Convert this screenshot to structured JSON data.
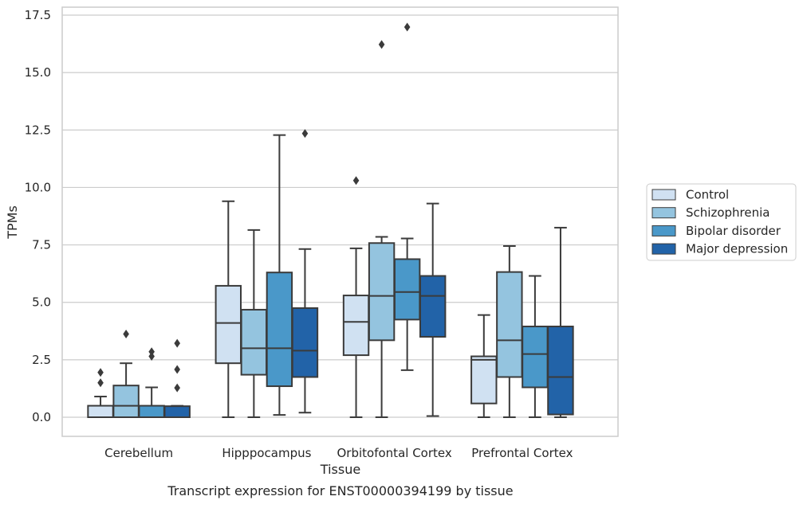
{
  "chart_data": {
    "type": "box",
    "title": "",
    "caption": "Transcript expression for ENST00000394199 by tissue",
    "xlabel": "Tissue",
    "ylabel": "TPMs",
    "ylim": [
      -0.8,
      17.8
    ],
    "yticks": [
      0.0,
      2.5,
      5.0,
      7.5,
      10.0,
      12.5,
      15.0,
      17.5
    ],
    "ytick_labels": [
      "0.0",
      "2.5",
      "5.0",
      "7.5",
      "10.0",
      "12.5",
      "15.0",
      "17.5"
    ],
    "grid": "horizontal",
    "legend_position": "right-outside",
    "categories": [
      "Cerebellum",
      "Hipppocampus",
      "Orbitofontal Cortex",
      "Prefrontal Cortex"
    ],
    "series": [
      {
        "name": "Control",
        "color": "#d0e1f2",
        "boxes": [
          {
            "whisker_low": 0.0,
            "q1": 0.0,
            "median": 0.0,
            "q3": 0.5,
            "whisker_high": 0.9,
            "outliers": [
              1.5,
              1.95
            ]
          },
          {
            "whisker_low": 0.0,
            "q1": 2.35,
            "median": 4.1,
            "q3": 5.72,
            "whisker_high": 9.4,
            "outliers": []
          },
          {
            "whisker_low": 0.0,
            "q1": 2.7,
            "median": 4.15,
            "q3": 5.3,
            "whisker_high": 7.35,
            "outliers": [
              10.3
            ]
          },
          {
            "whisker_low": 0.0,
            "q1": 0.6,
            "median": 2.5,
            "q3": 2.65,
            "whisker_high": 4.45,
            "outliers": []
          }
        ]
      },
      {
        "name": "Schizophrenia",
        "color": "#94c4df",
        "boxes": [
          {
            "whisker_low": 0.0,
            "q1": 0.0,
            "median": 0.5,
            "q3": 1.38,
            "whisker_high": 2.35,
            "outliers": [
              3.62
            ]
          },
          {
            "whisker_low": 0.0,
            "q1": 1.85,
            "median": 3.0,
            "q3": 4.68,
            "whisker_high": 8.15,
            "outliers": []
          },
          {
            "whisker_low": 0.0,
            "q1": 3.35,
            "median": 5.28,
            "q3": 7.58,
            "whisker_high": 7.85,
            "outliers": [
              16.22
            ]
          },
          {
            "whisker_low": 0.0,
            "q1": 1.75,
            "median": 3.35,
            "q3": 6.32,
            "whisker_high": 7.45,
            "outliers": []
          }
        ]
      },
      {
        "name": "Bipolar disorder",
        "color": "#4a98c9",
        "boxes": [
          {
            "whisker_low": 0.0,
            "q1": 0.0,
            "median": 0.0,
            "q3": 0.5,
            "whisker_high": 1.3,
            "outliers": [
              2.65,
              2.85
            ]
          },
          {
            "whisker_low": 0.1,
            "q1": 1.35,
            "median": 3.0,
            "q3": 6.3,
            "whisker_high": 12.28,
            "outliers": []
          },
          {
            "whisker_low": 2.05,
            "q1": 4.25,
            "median": 5.45,
            "q3": 6.88,
            "whisker_high": 7.78,
            "outliers": [
              16.98
            ]
          },
          {
            "whisker_low": 0.0,
            "q1": 1.3,
            "median": 2.75,
            "q3": 3.95,
            "whisker_high": 6.15,
            "outliers": []
          }
        ]
      },
      {
        "name": "Major depression",
        "color": "#2263a8",
        "boxes": [
          {
            "whisker_low": 0.0,
            "q1": 0.0,
            "median": 0.0,
            "q3": 0.48,
            "whisker_high": 0.5,
            "outliers": [
              1.28,
              2.08,
              3.22
            ]
          },
          {
            "whisker_low": 0.2,
            "q1": 1.75,
            "median": 2.9,
            "q3": 4.75,
            "whisker_high": 7.32,
            "outliers": [
              12.35
            ]
          },
          {
            "whisker_low": 0.05,
            "q1": 3.5,
            "median": 5.28,
            "q3": 6.15,
            "whisker_high": 9.3,
            "outliers": []
          },
          {
            "whisker_low": 0.0,
            "q1": 0.12,
            "median": 1.75,
            "q3": 3.95,
            "whisker_high": 8.25,
            "outliers": []
          }
        ]
      }
    ]
  }
}
